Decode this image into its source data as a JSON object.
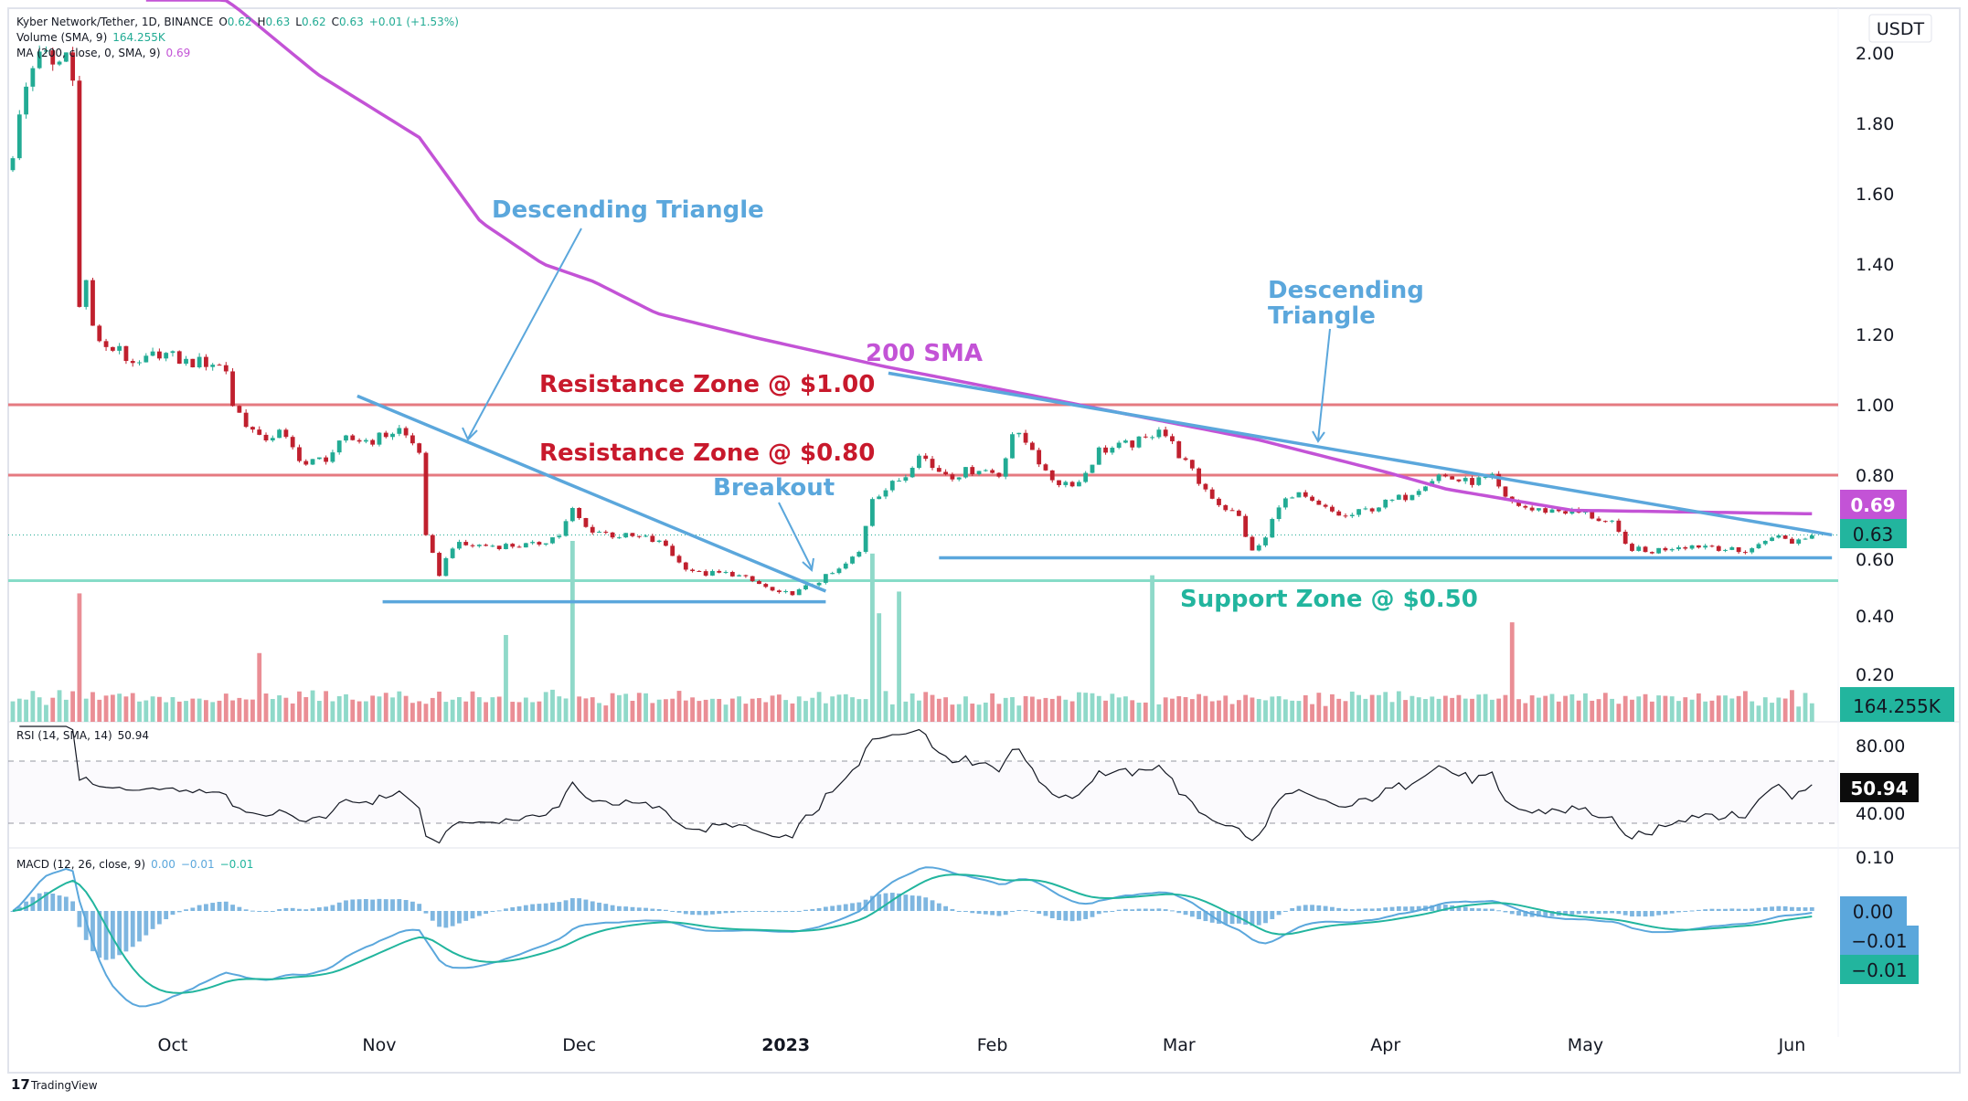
{
  "header": {
    "symbol": "Kyber Network/Tether, 1D, BINANCE",
    "o_label": "O",
    "o": "0.62",
    "h_label": "H",
    "h": "0.63",
    "l_label": "L",
    "l": "0.62",
    "c_label": "C",
    "c": "0.63",
    "change": "+0.01 (+1.53%)",
    "volume_label": "Volume (SMA, 9)",
    "volume_value": "164.255K",
    "ma_label": "MA (200, close, 0, SMA, 9)",
    "ma_value": "0.69",
    "currency": "USDT"
  },
  "colors": {
    "up": "#22ab94",
    "down": "#c0202e",
    "vol_up": "#8fd9c9",
    "vol_down": "#ea8e95",
    "sma": "#c353d6",
    "trend": "#5ba7dc",
    "resistance": "#e57a80",
    "support": "#86dcc8",
    "resistance_text": "#c8192c",
    "support_text": "#22b59e",
    "macd": "#5ba7dc",
    "signal": "#22b59e",
    "hist": "#7eb6e0"
  },
  "chart_data": {
    "type": "candlestick",
    "title": "Kyber Network/Tether, 1D, BINANCE",
    "x_unit": "day index since 2022-09-07",
    "price_axis": {
      "ticks": [
        "2.00",
        "1.80",
        "1.60",
        "1.40",
        "1.20",
        "1.00",
        "0.80",
        "0.60",
        "0.40",
        "0.20"
      ],
      "range": [
        0.2,
        2.0
      ]
    },
    "time_axis": [
      {
        "label": "Oct",
        "day": 24
      },
      {
        "label": "Nov",
        "day": 55
      },
      {
        "label": "Dec",
        "day": 85
      },
      {
        "label": "2023",
        "day": 116,
        "bold": true
      },
      {
        "label": "Feb",
        "day": 147
      },
      {
        "label": "Mar",
        "day": 175
      },
      {
        "label": "Apr",
        "day": 206
      },
      {
        "label": "May",
        "day": 236
      },
      {
        "label": "Jun",
        "day": 267
      }
    ],
    "close_anchors": [
      [
        0,
        1.72
      ],
      [
        2,
        1.9
      ],
      [
        4,
        2.02
      ],
      [
        6,
        1.95
      ],
      [
        8,
        2.0
      ],
      [
        9,
        1.92
      ],
      [
        10,
        1.3
      ],
      [
        11,
        1.35
      ],
      [
        12,
        1.22
      ],
      [
        14,
        1.15
      ],
      [
        16,
        1.17
      ],
      [
        18,
        1.1
      ],
      [
        22,
        1.15
      ],
      [
        26,
        1.12
      ],
      [
        30,
        1.12
      ],
      [
        32,
        1.1
      ],
      [
        33,
        1.0
      ],
      [
        35,
        0.95
      ],
      [
        37,
        0.9
      ],
      [
        40,
        0.92
      ],
      [
        44,
        0.83
      ],
      [
        47,
        0.85
      ],
      [
        50,
        0.9
      ],
      [
        54,
        0.9
      ],
      [
        58,
        0.93
      ],
      [
        61,
        0.87
      ],
      [
        62,
        0.62
      ],
      [
        64,
        0.52
      ],
      [
        66,
        0.6
      ],
      [
        70,
        0.6
      ],
      [
        74,
        0.6
      ],
      [
        78,
        0.6
      ],
      [
        82,
        0.63
      ],
      [
        84,
        0.7
      ],
      [
        86,
        0.65
      ],
      [
        90,
        0.63
      ],
      [
        95,
        0.62
      ],
      [
        98,
        0.6
      ],
      [
        100,
        0.55
      ],
      [
        103,
        0.52
      ],
      [
        108,
        0.52
      ],
      [
        112,
        0.49
      ],
      [
        115,
        0.46
      ],
      [
        118,
        0.47
      ],
      [
        121,
        0.5
      ],
      [
        124,
        0.53
      ],
      [
        127,
        0.58
      ],
      [
        129,
        0.74
      ],
      [
        131,
        0.76
      ],
      [
        134,
        0.8
      ],
      [
        136,
        0.87
      ],
      [
        138,
        0.82
      ],
      [
        141,
        0.8
      ],
      [
        145,
        0.82
      ],
      [
        148,
        0.8
      ],
      [
        150,
        0.92
      ],
      [
        153,
        0.88
      ],
      [
        155,
        0.8
      ],
      [
        157,
        0.78
      ],
      [
        160,
        0.78
      ],
      [
        163,
        0.87
      ],
      [
        166,
        0.88
      ],
      [
        170,
        0.9
      ],
      [
        172,
        0.94
      ],
      [
        175,
        0.86
      ],
      [
        178,
        0.78
      ],
      [
        181,
        0.72
      ],
      [
        184,
        0.68
      ],
      [
        186,
        0.58
      ],
      [
        188,
        0.62
      ],
      [
        190,
        0.72
      ],
      [
        193,
        0.74
      ],
      [
        196,
        0.71
      ],
      [
        200,
        0.68
      ],
      [
        203,
        0.7
      ],
      [
        206,
        0.72
      ],
      [
        209,
        0.74
      ],
      [
        212,
        0.78
      ],
      [
        214,
        0.8
      ],
      [
        218,
        0.78
      ],
      [
        222,
        0.79
      ],
      [
        224,
        0.73
      ],
      [
        228,
        0.7
      ],
      [
        232,
        0.7
      ],
      [
        236,
        0.69
      ],
      [
        240,
        0.66
      ],
      [
        242,
        0.6
      ],
      [
        245,
        0.58
      ],
      [
        250,
        0.6
      ],
      [
        255,
        0.6
      ],
      [
        259,
        0.58
      ],
      [
        262,
        0.6
      ],
      [
        264,
        0.63
      ],
      [
        267,
        0.61
      ],
      [
        270,
        0.63
      ]
    ],
    "sma200": [
      [
        20,
        2.3
      ],
      [
        33.5,
        2.13
      ],
      [
        45.7,
        1.94
      ],
      [
        61,
        1.76
      ],
      [
        70.2,
        1.52
      ],
      [
        79.6,
        1.4
      ],
      [
        87.2,
        1.35
      ],
      [
        96.6,
        1.26
      ],
      [
        111.6,
        1.19
      ],
      [
        130.5,
        1.11
      ],
      [
        149.3,
        1.04
      ],
      [
        168.1,
        0.97
      ],
      [
        187,
        0.9
      ],
      [
        205.8,
        0.81
      ],
      [
        215.2,
        0.76
      ],
      [
        234,
        0.7
      ],
      [
        270.4,
        0.69
      ]
    ],
    "volume_relative_spikes": [
      [
        10,
        0.71
      ],
      [
        37,
        0.38
      ],
      [
        74,
        0.48
      ],
      [
        84,
        1.0
      ],
      [
        129,
        0.93
      ],
      [
        130,
        0.6
      ],
      [
        133,
        0.72
      ],
      [
        171,
        0.81
      ],
      [
        225,
        0.55
      ]
    ],
    "levels": [
      {
        "price": 1.0,
        "kind": "resistance",
        "label": "Resistance Zone @ $1.00"
      },
      {
        "price": 0.8,
        "kind": "resistance",
        "label": "Resistance Zone @ $0.80"
      },
      {
        "price": 0.5,
        "kind": "support",
        "label": "Support Zone @ $0.50"
      }
    ],
    "trendlines": [
      {
        "from": [
          51.7,
          1.025
        ],
        "to": [
          122,
          0.47
        ]
      },
      {
        "from": [
          131.4,
          1.09
        ],
        "to": [
          273,
          0.63
        ]
      }
    ],
    "flat_lines": [
      {
        "from": 55.5,
        "to": 122,
        "price": 0.44
      },
      {
        "from": 139,
        "to": 273,
        "price": 0.565
      }
    ],
    "annotations": {
      "triangle1": "Descending Triangle",
      "triangle2_line1": "Descending",
      "triangle2_line2": "Triangle",
      "breakout": "Breakout",
      "sma": "200 SMA"
    },
    "rsi": {
      "label": "RSI (14, SMA, 14)",
      "value": "50.94",
      "ticks": [
        "80.00",
        "40.00"
      ],
      "bands": [
        70,
        30
      ]
    },
    "macd": {
      "label": "MACD (12, 26, close, 9)",
      "macd": "0.00",
      "signal": "−0.01",
      "hist": "−0.01",
      "ticks": [
        "0.10"
      ]
    },
    "badges": {
      "sma": "0.69",
      "price": "0.63",
      "volume": "164.255K",
      "rsi": "50.94",
      "macd": "0.00",
      "signal": "−0.01",
      "hist": "−0.01"
    }
  },
  "footer": {
    "brand": "TradingView"
  }
}
